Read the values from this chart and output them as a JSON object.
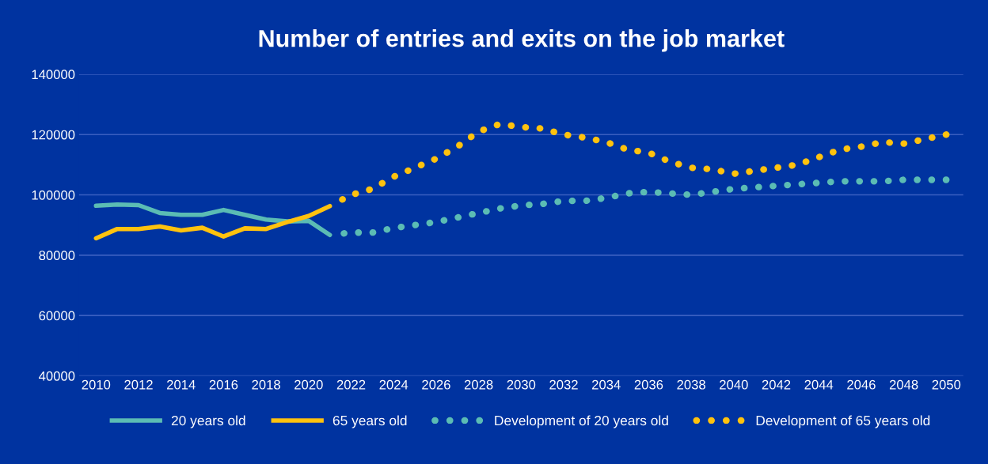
{
  "chart_data": {
    "type": "line",
    "title": "Number of entries and exits on the job market",
    "xlim": [
      2009.2,
      2050.8
    ],
    "xticks": [
      2010,
      2012,
      2014,
      2016,
      2018,
      2020,
      2022,
      2024,
      2026,
      2028,
      2030,
      2032,
      2034,
      2036,
      2038,
      2040,
      2042,
      2044,
      2046,
      2048,
      2050
    ],
    "ylim": [
      40000,
      140000
    ],
    "yticks": [
      40000,
      60000,
      80000,
      100000,
      120000,
      140000
    ],
    "grid": "y",
    "legend": "bottom",
    "series": [
      {
        "name": "20 years old",
        "color": "#5bbcb4",
        "line_style": "solid",
        "x": [
          2010,
          2011,
          2012,
          2013,
          2014,
          2015,
          2016,
          2017,
          2018,
          2019,
          2020,
          2021
        ],
        "values": [
          96400,
          96800,
          96600,
          94000,
          93400,
          93400,
          95000,
          93400,
          91800,
          91200,
          91400,
          86700
        ]
      },
      {
        "name": "65 years old",
        "color": "#ffc20e",
        "line_style": "solid",
        "x": [
          2010,
          2011,
          2012,
          2013,
          2014,
          2015,
          2016,
          2017,
          2018,
          2019,
          2020,
          2021
        ],
        "values": [
          85600,
          88700,
          88700,
          89500,
          88200,
          89100,
          86200,
          88900,
          88700,
          91000,
          93000,
          96300
        ]
      },
      {
        "name": "Development of 20 years old",
        "color": "#5bbcb4",
        "line_style": "dotted",
        "x": [
          2021,
          2022,
          2023,
          2024,
          2025,
          2026,
          2027,
          2028,
          2029,
          2030,
          2031,
          2032,
          2033,
          2034,
          2035,
          2036,
          2037,
          2038,
          2039,
          2040,
          2041,
          2042,
          2043,
          2044,
          2045,
          2046,
          2047,
          2048,
          2049,
          2050
        ],
        "values": [
          86700,
          87500,
          87500,
          89000,
          90000,
          91000,
          92500,
          94000,
          95500,
          96500,
          97000,
          98000,
          98000,
          99000,
          100500,
          101000,
          100500,
          100000,
          101000,
          102000,
          102500,
          103000,
          103500,
          104000,
          104500,
          104500,
          104500,
          105000,
          105000,
          105000
        ]
      },
      {
        "name": "Development of 65 years old",
        "color": "#ffc20e",
        "line_style": "dotted",
        "x": [
          2021,
          2022,
          2023,
          2024,
          2025,
          2026,
          2027,
          2028,
          2029,
          2030,
          2031,
          2032,
          2033,
          2034,
          2035,
          2036,
          2037,
          2038,
          2039,
          2040,
          2041,
          2042,
          2043,
          2044,
          2045,
          2046,
          2047,
          2048,
          2049,
          2050
        ],
        "values": [
          96300,
          100000,
          102000,
          106000,
          109000,
          112000,
          116000,
          121000,
          123500,
          122500,
          122000,
          120000,
          119000,
          117500,
          115000,
          114000,
          111000,
          109000,
          108500,
          107000,
          108000,
          109000,
          110000,
          112500,
          115000,
          116000,
          117500,
          117000,
          118500,
          120000
        ]
      }
    ]
  }
}
